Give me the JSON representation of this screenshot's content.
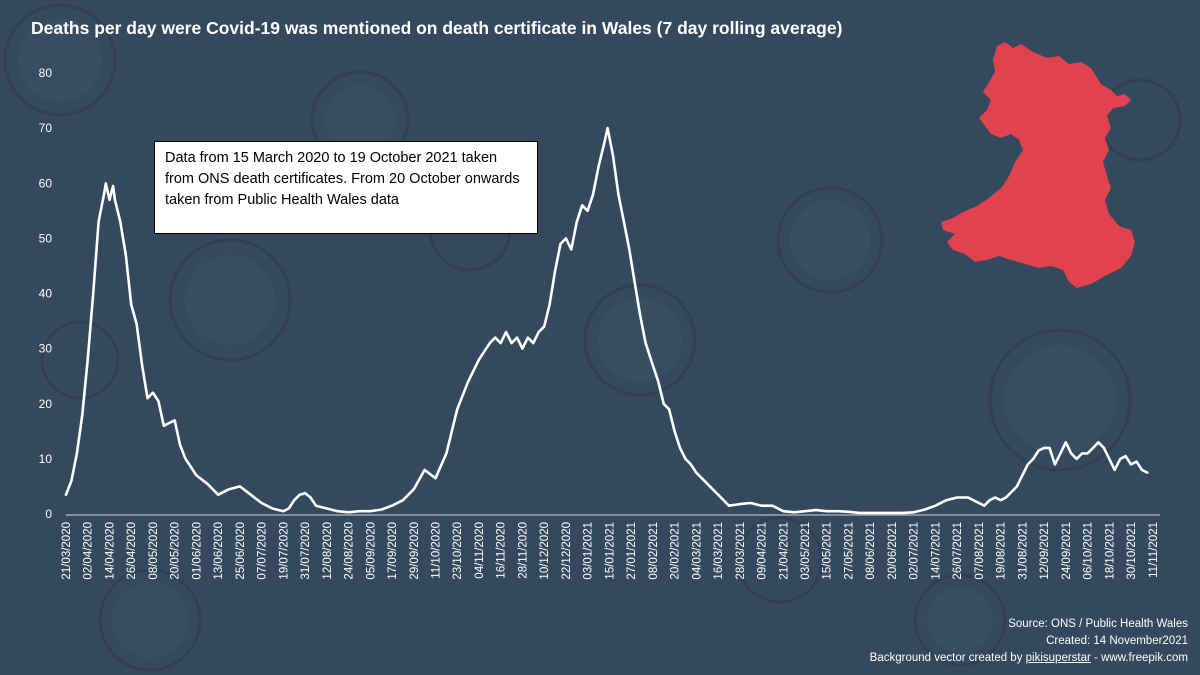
{
  "colors": {
    "background": "#34495d",
    "line": "#ffffff",
    "map": "#e04250"
  },
  "title": "Deaths per day were Covid-19 was mentioned on death certificate in Wales (7 day rolling average)",
  "note": "Data from 15 March 2020 to 19 October 2021 taken from ONS death certificates.  From 20 October onwards taken from Public Health  Wales data",
  "map_icon": "wales-map-icon",
  "footer": {
    "source": "Source: ONS / Public Health Wales",
    "created": "Created: 14 November2021",
    "bg_credit_prefix": "Background vector created by ",
    "bg_credit_author": "pikisuperstar",
    "bg_credit_suffix": " - www.freepik.com"
  },
  "chart_data": {
    "type": "line",
    "title": "Deaths per day were Covid-19 was mentioned on death certificate in Wales (7 day rolling average)",
    "xlabel": "",
    "ylabel": "",
    "ylim": [
      0,
      80
    ],
    "yticks": [
      0,
      10,
      20,
      30,
      40,
      50,
      60,
      70,
      80
    ],
    "xlim": [
      "21/03/2020",
      "15/11/2021"
    ],
    "x_tick_labels": [
      "21/03/2020",
      "02/04/2020",
      "14/04/2020",
      "26/04/2020",
      "08/05/2020",
      "20/05/2020",
      "01/06/2020",
      "13/06/2020",
      "25/06/2020",
      "07/07/2020",
      "19/07/2020",
      "31/07/2020",
      "12/08/2020",
      "24/08/2020",
      "05/09/2020",
      "17/09/2020",
      "29/09/2020",
      "11/10/2020",
      "23/10/2020",
      "04/11/2020",
      "16/11/2020",
      "28/11/2020",
      "10/12/2020",
      "22/12/2020",
      "03/01/2021",
      "15/01/2021",
      "27/01/2021",
      "08/02/2021",
      "20/02/2021",
      "04/03/2021",
      "16/03/2021",
      "28/03/2021",
      "09/04/2021",
      "21/04/2021",
      "03/05/2021",
      "15/05/2021",
      "27/05/2021",
      "08/06/2021",
      "20/06/2021",
      "02/07/2021",
      "14/07/2021",
      "26/07/2021",
      "07/08/2021",
      "19/08/2021",
      "31/08/2021",
      "12/09/2021",
      "24/09/2021",
      "06/10/2021",
      "18/10/2021",
      "30/10/2021",
      "11/11/2021"
    ],
    "grid": false,
    "series": [
      {
        "name": "Deaths per day (7 day rolling average)",
        "points": [
          [
            "21/03/2020",
            3.5
          ],
          [
            "24/03/2020",
            6
          ],
          [
            "27/03/2020",
            11
          ],
          [
            "30/03/2020",
            18
          ],
          [
            "02/04/2020",
            28
          ],
          [
            "05/04/2020",
            40
          ],
          [
            "08/04/2020",
            53
          ],
          [
            "11/04/2020",
            58
          ],
          [
            "12/04/2020",
            60
          ],
          [
            "14/04/2020",
            57
          ],
          [
            "16/04/2020",
            59.5
          ],
          [
            "17/04/2020",
            57
          ],
          [
            "20/04/2020",
            53
          ],
          [
            "23/04/2020",
            47
          ],
          [
            "26/04/2020",
            38
          ],
          [
            "29/04/2020",
            34.5
          ],
          [
            "02/05/2020",
            27
          ],
          [
            "05/05/2020",
            21
          ],
          [
            "08/05/2020",
            22
          ],
          [
            "11/05/2020",
            20.5
          ],
          [
            "14/05/2020",
            16
          ],
          [
            "17/05/2020",
            16.5
          ],
          [
            "20/05/2020",
            17
          ],
          [
            "23/05/2020",
            12.5
          ],
          [
            "26/05/2020",
            10
          ],
          [
            "29/05/2020",
            8.5
          ],
          [
            "01/06/2020",
            7
          ],
          [
            "07/06/2020",
            5.5
          ],
          [
            "13/06/2020",
            3.5
          ],
          [
            "19/06/2020",
            4.5
          ],
          [
            "25/06/2020",
            5
          ],
          [
            "01/07/2020",
            3.5
          ],
          [
            "07/07/2020",
            2
          ],
          [
            "13/07/2020",
            1
          ],
          [
            "19/07/2020",
            0.5
          ],
          [
            "22/07/2020",
            1
          ],
          [
            "25/07/2020",
            2.5
          ],
          [
            "28/07/2020",
            3.5
          ],
          [
            "31/07/2020",
            3.8
          ],
          [
            "03/08/2020",
            3
          ],
          [
            "06/08/2020",
            1.5
          ],
          [
            "12/08/2020",
            1
          ],
          [
            "18/08/2020",
            0.5
          ],
          [
            "24/08/2020",
            0.3
          ],
          [
            "30/08/2020",
            0.5
          ],
          [
            "05/09/2020",
            0.5
          ],
          [
            "11/09/2020",
            0.8
          ],
          [
            "17/09/2020",
            1.5
          ],
          [
            "23/09/2020",
            2.5
          ],
          [
            "29/09/2020",
            4.5
          ],
          [
            "05/10/2020",
            8
          ],
          [
            "11/10/2020",
            6.5
          ],
          [
            "17/10/2020",
            11
          ],
          [
            "23/10/2020",
            19
          ],
          [
            "29/10/2020",
            24
          ],
          [
            "04/11/2020",
            28
          ],
          [
            "10/11/2020",
            31
          ],
          [
            "13/11/2020",
            32
          ],
          [
            "16/11/2020",
            31
          ],
          [
            "19/11/2020",
            33
          ],
          [
            "22/11/2020",
            31
          ],
          [
            "25/11/2020",
            32
          ],
          [
            "28/11/2020",
            30
          ],
          [
            "01/12/2020",
            32
          ],
          [
            "04/12/2020",
            31
          ],
          [
            "07/12/2020",
            33
          ],
          [
            "10/12/2020",
            34
          ],
          [
            "13/12/2020",
            38
          ],
          [
            "16/12/2020",
            44
          ],
          [
            "19/12/2020",
            49
          ],
          [
            "22/12/2020",
            50
          ],
          [
            "25/12/2020",
            48
          ],
          [
            "28/12/2020",
            53
          ],
          [
            "31/12/2020",
            56
          ],
          [
            "03/01/2021",
            55
          ],
          [
            "06/01/2021",
            58
          ],
          [
            "09/01/2021",
            63
          ],
          [
            "12/01/2021",
            67
          ],
          [
            "14/01/2021",
            70
          ],
          [
            "17/01/2021",
            65
          ],
          [
            "20/01/2021",
            58
          ],
          [
            "23/01/2021",
            53
          ],
          [
            "26/01/2021",
            48
          ],
          [
            "29/01/2021",
            42
          ],
          [
            "01/02/2021",
            36
          ],
          [
            "04/02/2021",
            31
          ],
          [
            "08/02/2021",
            27
          ],
          [
            "11/02/2021",
            24
          ],
          [
            "14/02/2021",
            20
          ],
          [
            "17/02/2021",
            19
          ],
          [
            "20/02/2021",
            15
          ],
          [
            "23/02/2021",
            12
          ],
          [
            "26/02/2021",
            10
          ],
          [
            "01/03/2021",
            9
          ],
          [
            "04/03/2021",
            7.5
          ],
          [
            "07/03/2021",
            6.5
          ],
          [
            "10/03/2021",
            5.5
          ],
          [
            "13/03/2021",
            4.5
          ],
          [
            "16/03/2021",
            3.5
          ],
          [
            "19/03/2021",
            2.5
          ],
          [
            "22/03/2021",
            1.5
          ],
          [
            "28/03/2021",
            1.8
          ],
          [
            "03/04/2021",
            2
          ],
          [
            "09/04/2021",
            1.5
          ],
          [
            "15/04/2021",
            1.5
          ],
          [
            "21/04/2021",
            0.5
          ],
          [
            "27/04/2021",
            0.3
          ],
          [
            "03/05/2021",
            0.5
          ],
          [
            "09/05/2021",
            0.7
          ],
          [
            "15/05/2021",
            0.5
          ],
          [
            "21/05/2021",
            0.5
          ],
          [
            "27/05/2021",
            0.4
          ],
          [
            "02/06/2021",
            0.2
          ],
          [
            "08/06/2021",
            0.2
          ],
          [
            "14/06/2021",
            0.2
          ],
          [
            "20/06/2021",
            0.2
          ],
          [
            "26/06/2021",
            0.2
          ],
          [
            "02/07/2021",
            0.3
          ],
          [
            "08/07/2021",
            0.8
          ],
          [
            "14/07/2021",
            1.5
          ],
          [
            "20/07/2021",
            2.5
          ],
          [
            "26/07/2021",
            3
          ],
          [
            "01/08/2021",
            3
          ],
          [
            "07/08/2021",
            2
          ],
          [
            "10/08/2021",
            1.5
          ],
          [
            "13/08/2021",
            2.5
          ],
          [
            "16/08/2021",
            3
          ],
          [
            "19/08/2021",
            2.5
          ],
          [
            "22/08/2021",
            3
          ],
          [
            "25/08/2021",
            4
          ],
          [
            "28/08/2021",
            5
          ],
          [
            "31/08/2021",
            7
          ],
          [
            "03/09/2021",
            9
          ],
          [
            "06/09/2021",
            10
          ],
          [
            "09/09/2021",
            11.5
          ],
          [
            "12/09/2021",
            12
          ],
          [
            "15/09/2021",
            12
          ],
          [
            "18/09/2021",
            9
          ],
          [
            "21/09/2021",
            11
          ],
          [
            "24/09/2021",
            13
          ],
          [
            "27/09/2021",
            11
          ],
          [
            "30/09/2021",
            10
          ],
          [
            "03/10/2021",
            11
          ],
          [
            "06/10/2021",
            11
          ],
          [
            "09/10/2021",
            12
          ],
          [
            "12/10/2021",
            13
          ],
          [
            "15/10/2021",
            12
          ],
          [
            "18/10/2021",
            10
          ],
          [
            "21/10/2021",
            8
          ],
          [
            "24/10/2021",
            10
          ],
          [
            "27/10/2021",
            10.5
          ],
          [
            "30/10/2021",
            9
          ],
          [
            "02/11/2021",
            9.5
          ],
          [
            "05/11/2021",
            8
          ],
          [
            "08/11/2021",
            7.5
          ]
        ]
      }
    ]
  }
}
